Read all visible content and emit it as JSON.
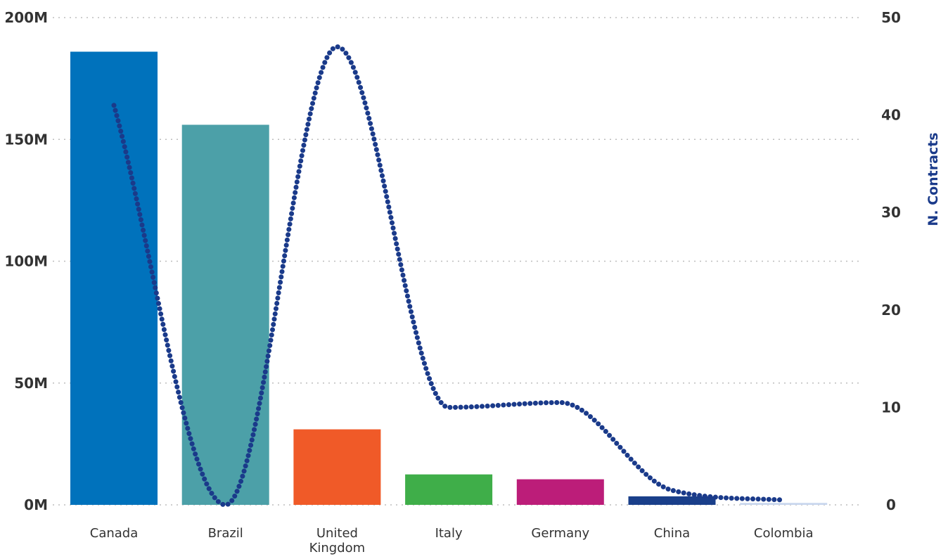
{
  "chart_data": {
    "type": "bar",
    "categories": [
      "Canada",
      "Brazil",
      "United Kingdom",
      "Italy",
      "Germany",
      "China",
      "Colombia"
    ],
    "category_lines": [
      [
        "Canada"
      ],
      [
        "Brazil"
      ],
      [
        "United",
        "Kingdom"
      ],
      [
        "Italy"
      ],
      [
        "Germany"
      ],
      [
        "China"
      ],
      [
        "Colombia"
      ]
    ],
    "series": [
      {
        "kind": "bar",
        "axis": "left",
        "values": [
          186000000,
          156000000,
          31000000,
          12500000,
          10500000,
          3500000,
          800000
        ],
        "colors": [
          "#0072bc",
          "#4ca0a8",
          "#f05a28",
          "#3fae49",
          "#bc1d79",
          "#1a3f8a",
          "#c9d7ee"
        ]
      },
      {
        "name": "N. Contracts",
        "kind": "line",
        "axis": "right",
        "style": "dotted",
        "color": "#1a3a8a",
        "values": [
          41,
          0,
          47,
          10,
          10.5,
          1.5,
          0.5
        ]
      }
    ],
    "y_left": {
      "ylim": [
        0,
        200000000
      ],
      "ticks": [
        0,
        50000000,
        100000000,
        150000000,
        200000000
      ],
      "tick_labels": [
        "0M",
        "50M",
        "100M",
        "150M",
        "200M"
      ],
      "label": ""
    },
    "y_right": {
      "ylim": [
        0,
        50
      ],
      "ticks": [
        0,
        10,
        20,
        30,
        40,
        50
      ],
      "tick_labels": [
        "0",
        "10",
        "20",
        "30",
        "40",
        "50"
      ],
      "label": "N. Contracts"
    },
    "grid": true,
    "legend": "none"
  }
}
